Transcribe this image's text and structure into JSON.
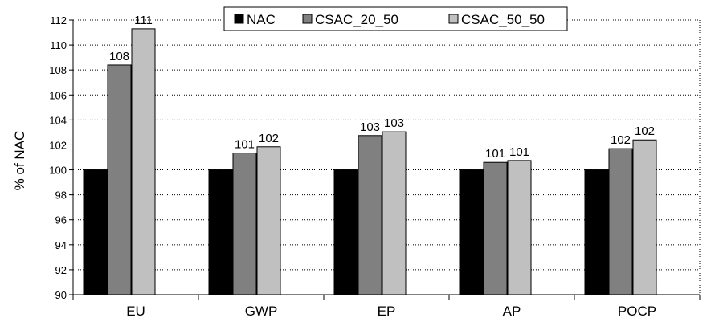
{
  "chart_data": {
    "type": "bar",
    "title": "",
    "xlabel": "",
    "ylabel": "% of NAC",
    "ylim": [
      90,
      112
    ],
    "yticks": [
      90,
      92,
      94,
      96,
      98,
      100,
      102,
      104,
      106,
      108,
      110,
      112
    ],
    "grid": "horizontal dotted",
    "legend": "top-center",
    "categories": [
      "EU",
      "GWP",
      "EP",
      "AP",
      "POCP"
    ],
    "series": [
      {
        "name": "NAC",
        "color": "#000000",
        "values": [
          100,
          100,
          100,
          100,
          100
        ],
        "labels": [
          "",
          "",
          "",
          "",
          ""
        ]
      },
      {
        "name": "CSAC_20_50",
        "color": "#808080",
        "values": [
          108.4,
          101.35,
          102.75,
          100.6,
          101.7
        ],
        "labels": [
          "108",
          "101",
          "103",
          "101",
          "102"
        ]
      },
      {
        "name": "CSAC_50_50",
        "color": "#c0c0c0",
        "values": [
          111.3,
          101.85,
          103.05,
          100.75,
          102.4
        ],
        "labels": [
          "111",
          "102",
          "103",
          "101",
          "102"
        ]
      }
    ]
  }
}
